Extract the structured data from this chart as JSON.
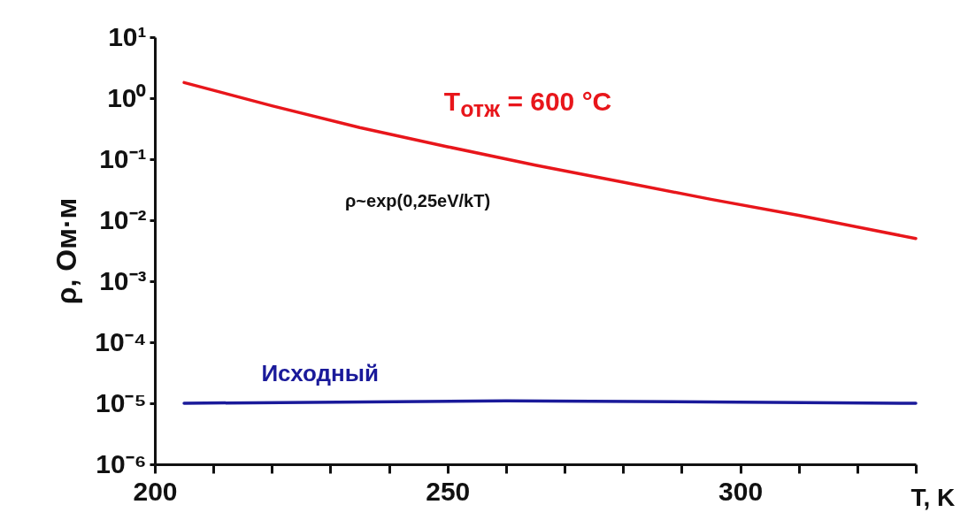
{
  "chart_data": {
    "type": "line",
    "xlabel": "T, K",
    "ylabel": "ρ, Ом·м",
    "series": [
      {
        "name": "T$_{отж}$ = 600 °C",
        "color": "#e8161b",
        "x": [
          205,
          220,
          235,
          250,
          265,
          280,
          295,
          310,
          330
        ],
        "values": [
          1.8,
          0.75,
          0.33,
          0.16,
          0.08,
          0.042,
          0.022,
          0.012,
          0.005
        ]
      },
      {
        "name": "Исходный",
        "color": "#1a1a9a",
        "x": [
          205,
          260,
          330
        ],
        "values": [
          1e-05,
          1.1e-05,
          1e-05
        ]
      }
    ],
    "annotations": [
      "ρ~exp(0,25eV/kT)"
    ],
    "log": "y",
    "xlim": [
      200,
      330
    ],
    "xticks": [
      200,
      {
        "value": 210,
        "label": null
      },
      {
        "value": 220,
        "label": null
      },
      {
        "value": 230,
        "label": null
      },
      {
        "value": 240,
        "label": null
      },
      250,
      {
        "value": 260,
        "label": null
      },
      {
        "value": 270,
        "label": null
      },
      {
        "value": 280,
        "label": null
      },
      {
        "value": 290,
        "label": null
      },
      300,
      {
        "value": 310,
        "label": null
      },
      {
        "value": 320,
        "label": null
      },
      {
        "value": 330,
        "label": null
      }
    ],
    "ylim": [
      1e-06,
      10
    ],
    "yticks": [
      {
        "value": 1e-06,
        "label": "10⁻⁶"
      },
      {
        "value": 1e-05,
        "label": "10⁻⁵"
      },
      {
        "value": 0.0001,
        "label": "10⁻⁴"
      },
      {
        "value": 0.001,
        "label": "10⁻³"
      },
      {
        "value": 0.01,
        "label": "10⁻²"
      },
      {
        "value": 0.1,
        "label": "10⁻¹"
      },
      {
        "value": 1,
        "label": "10⁰"
      },
      {
        "value": 10,
        "label": "10¹"
      }
    ],
    "grid": false,
    "marker": "none",
    "line_style": "solid"
  }
}
